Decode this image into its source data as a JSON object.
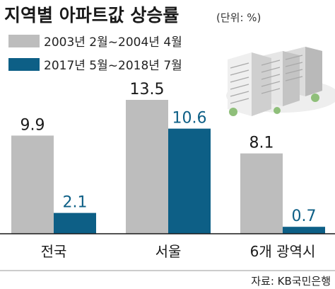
{
  "title": "지역별 아파트값 상승률",
  "unit": "(단위: %)",
  "source": "자료: KB국민은행",
  "colors": {
    "series1": "#bdbdbd",
    "series2": "#0d5f86",
    "baseline": "#1a1a1a"
  },
  "illustration": "apartment-buildings-icon",
  "chart_data": {
    "type": "bar",
    "categories": [
      "전국",
      "서울",
      "6개 광역시"
    ],
    "series": [
      {
        "name": "2003년 2월~2004년 4월",
        "values": [
          9.9,
          13.5,
          8.1
        ]
      },
      {
        "name": "2017년 5월~2018년 7월",
        "values": [
          2.1,
          10.6,
          0.7
        ]
      }
    ],
    "value_labels": [
      [
        "9.9",
        "13.5",
        "8.1"
      ],
      [
        "2.1",
        "10.6",
        "0.7"
      ]
    ],
    "legend": "top-left",
    "grid": false
  }
}
